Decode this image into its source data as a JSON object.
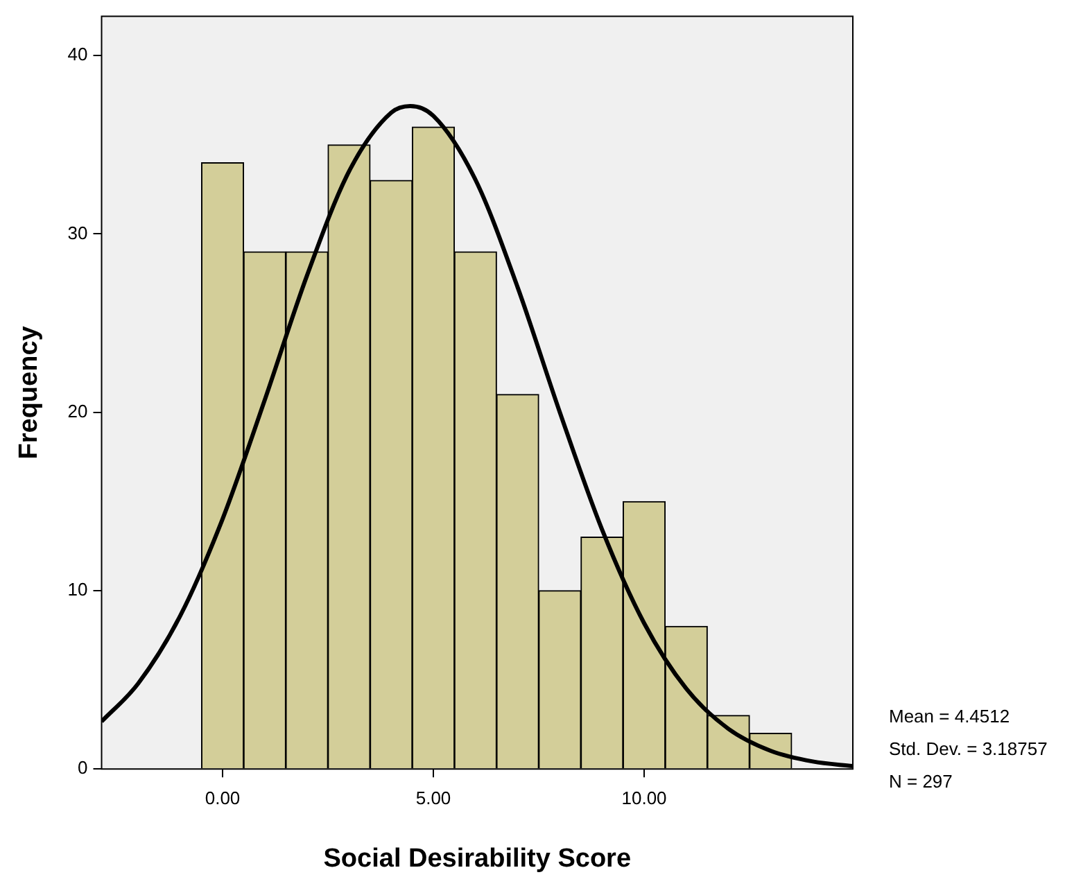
{
  "chart_data": {
    "type": "histogram",
    "xlabel": "Social Desirability Score",
    "ylabel": "Frequency",
    "bins": [
      -0.5,
      0.5,
      1.5,
      2.5,
      3.5,
      4.5,
      5.5,
      6.5,
      7.5,
      8.5,
      9.5,
      10.5,
      11.5,
      12.5,
      13.5
    ],
    "values": [
      34,
      29,
      29,
      35,
      33,
      36,
      29,
      21,
      10,
      13,
      15,
      8,
      3,
      2
    ],
    "color": "#d3ce99",
    "series": [
      {
        "type": "line",
        "color": "#000000",
        "x": [
          -2.87,
          -2,
          -1,
          0,
          1,
          2,
          3,
          4,
          4.4512,
          5,
          6,
          7,
          8,
          9,
          10,
          11,
          12,
          13,
          14,
          14.95
        ],
        "values": [
          2.66,
          4.8,
          8.61,
          14.02,
          20.69,
          27.65,
          33.51,
          36.8,
          37.17,
          36.62,
          33.03,
          27.0,
          20.0,
          13.43,
          8.17,
          4.5,
          2.25,
          1.02,
          0.42,
          0.16
        ]
      }
    ],
    "xlim": [
      -2.87,
      14.95
    ],
    "xticks": [
      {
        "value": 0,
        "label": "0.00"
      },
      {
        "value": 5,
        "label": "5.00"
      },
      {
        "value": 10,
        "label": "10.00"
      }
    ],
    "ylim": [
      0,
      42.2
    ],
    "yticks": [
      0,
      10,
      20,
      30,
      40
    ],
    "legend": false,
    "annotations": [
      "Mean = 4.4512",
      "Std. Dev. = 3.18757",
      "N = 297"
    ]
  }
}
